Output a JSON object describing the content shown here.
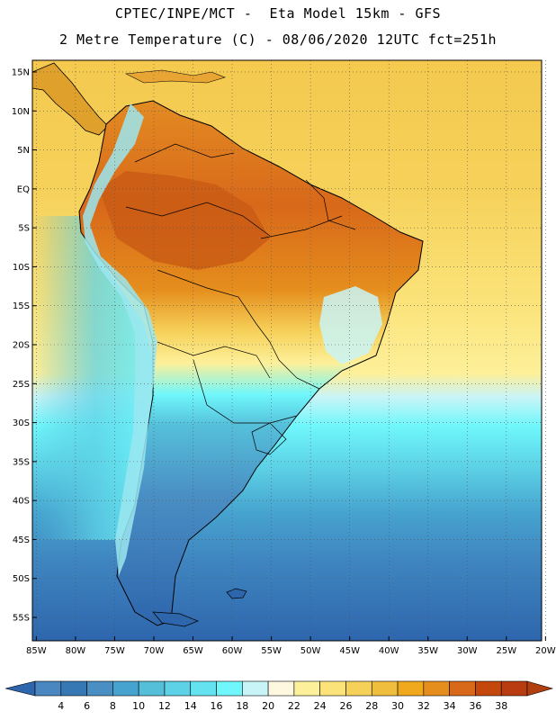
{
  "header": {
    "line1": "CPTEC/INPE/MCT -  Eta Model 15km - GFS",
    "line2": "2 Metre Temperature (C) - 08/06/2020 12UTC fct=251h"
  },
  "axes": {
    "lat_labels": [
      "15N",
      "10N",
      "5N",
      "EQ",
      "5S",
      "10S",
      "15S",
      "20S",
      "25S",
      "30S",
      "35S",
      "40S",
      "45S",
      "50S",
      "55S"
    ],
    "lat_values": [
      15,
      10,
      5,
      0,
      -5,
      -10,
      -15,
      -20,
      -25,
      -30,
      -35,
      -40,
      -45,
      -50,
      -55
    ],
    "lon_labels": [
      "85W",
      "80W",
      "75W",
      "70W",
      "65W",
      "60W",
      "55W",
      "50W",
      "45W",
      "40W",
      "35W",
      "30W",
      "25W",
      "20W"
    ],
    "lon_values": [
      -85,
      -80,
      -75,
      -70,
      -65,
      -60,
      -55,
      -50,
      -45,
      -40,
      -35,
      -30,
      -25,
      -20
    ],
    "lat_range": [
      -58,
      16.5
    ],
    "lon_range": [
      -85.5,
      -20.5
    ]
  },
  "colorbar": {
    "labels": [
      "4",
      "6",
      "8",
      "10",
      "12",
      "14",
      "16",
      "18",
      "20",
      "22",
      "24",
      "26",
      "28",
      "30",
      "32",
      "34",
      "36",
      "38"
    ],
    "colors": [
      "#4a86c0",
      "#3678b3",
      "#4a8fc4",
      "#46a3cf",
      "#55bfda",
      "#5dd2e6",
      "#64e2ef",
      "#6ff7fb",
      "#c9f4f7",
      "#fff8e0",
      "#fdf09a",
      "#fbe37a",
      "#f6d15a",
      "#efbe3c",
      "#f0a91c",
      "#e58e1d",
      "#d8681a",
      "#c4470c",
      "#b83c10"
    ],
    "arrow_low_color": "#2e66ad",
    "arrow_high_color": "#b23f0f"
  },
  "legend_colors": {
    "ocean_north": "#f6d15a",
    "ocean_mid": "#fdf09a",
    "ocean_cool": "#5dd2e6",
    "ocean_south": "#2e66ad",
    "land_hot": "#d8681a",
    "land_warm": "#e58e1d",
    "land_cold": "#3678b3",
    "andes": "#9be6f0"
  }
}
